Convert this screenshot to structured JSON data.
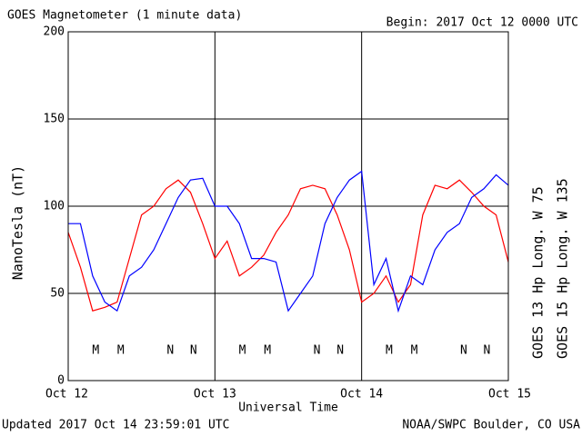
{
  "chart_data": {
    "type": "line",
    "title": "GOES Magnetometer (1 minute data)",
    "subtitle": "Begin:  2017 Oct 12 0000 UTC",
    "y_label": "NanoTesla (nT)",
    "x_label": "Universal Time",
    "footer_left": "Updated 2017 Oct 14 23:59:01 UTC",
    "footer_right": "NOAA/SWPC Boulder, CO USA",
    "x": [
      0,
      2,
      4,
      6,
      8,
      10,
      12,
      14,
      16,
      18,
      20,
      22,
      24,
      26,
      28,
      30,
      32,
      34,
      36,
      38,
      40,
      42,
      44,
      46,
      48,
      50,
      52,
      54,
      56,
      58,
      60,
      62,
      64,
      66,
      68,
      70,
      72
    ],
    "series": [
      {
        "name": "GOES 13 Hp  Long. W 75",
        "color": "#ff0000",
        "values": [
          85,
          65,
          40,
          42,
          45,
          70,
          95,
          100,
          110,
          115,
          108,
          90,
          70,
          80,
          60,
          65,
          72,
          85,
          95,
          110,
          112,
          110,
          95,
          75,
          45,
          50,
          60,
          45,
          55,
          95,
          112,
          110,
          115,
          108,
          100,
          95,
          68
        ]
      },
      {
        "name": "GOES 15 Hp  Long. W 135",
        "color": "#0000ff",
        "values": [
          90,
          90,
          60,
          45,
          40,
          60,
          65,
          75,
          90,
          105,
          115,
          116,
          100,
          100,
          90,
          70,
          70,
          68,
          40,
          50,
          60,
          90,
          105,
          115,
          120,
          55,
          70,
          40,
          60,
          55,
          75,
          85,
          90,
          105,
          110,
          118,
          112
        ]
      }
    ],
    "markers": [
      {
        "label": "M",
        "x": 4.5,
        "series": 0
      },
      {
        "label": "M",
        "x": 8.6,
        "series": 1
      },
      {
        "label": "N",
        "x": 16.7,
        "series": 0
      },
      {
        "label": "N",
        "x": 20.5,
        "series": 1
      },
      {
        "label": "M",
        "x": 28.5,
        "series": 0
      },
      {
        "label": "M",
        "x": 32.6,
        "series": 1
      },
      {
        "label": "N",
        "x": 40.7,
        "series": 0
      },
      {
        "label": "N",
        "x": 44.5,
        "series": 1
      },
      {
        "label": "M",
        "x": 52.5,
        "series": 0
      },
      {
        "label": "M",
        "x": 56.6,
        "series": 1
      },
      {
        "label": "N",
        "x": 64.7,
        "series": 0
      },
      {
        "label": "N",
        "x": 68.5,
        "series": 1
      }
    ],
    "xlim": [
      0,
      72
    ],
    "xticks": [
      {
        "value": 0,
        "label": "Oct 12"
      },
      {
        "value": 24,
        "label": "Oct 13"
      },
      {
        "value": 48,
        "label": "Oct 14"
      },
      {
        "value": 72,
        "label": "Oct 15"
      }
    ],
    "ylim": [
      0,
      200
    ],
    "yticks": [
      0,
      50,
      100,
      150,
      200
    ],
    "grid": true
  }
}
